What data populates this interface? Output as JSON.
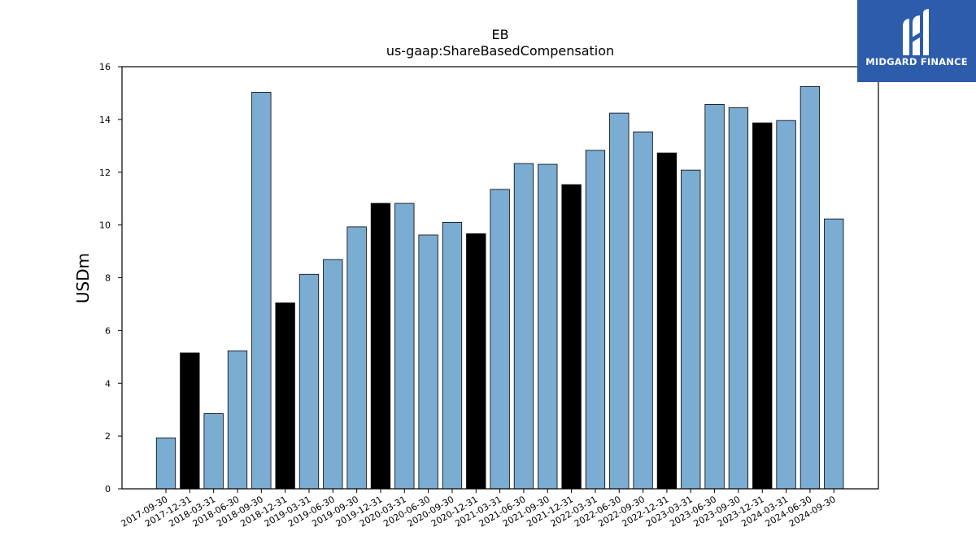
{
  "chart_data": {
    "type": "bar",
    "title": "EB",
    "subtitle": "us-gaap:ShareBasedCompensation",
    "xlabel": "",
    "ylabel": "USDm",
    "ylim": [
      0,
      16
    ],
    "yticks": [
      0,
      2,
      4,
      6,
      8,
      10,
      12,
      14,
      16
    ],
    "grid": false,
    "colors": {
      "quarter": "#7bacd2",
      "year_end": "#000000",
      "edge": "#000000"
    },
    "categories": [
      "2017-09-30",
      "2017-12-31",
      "2018-03-31",
      "2018-06-30",
      "2018-09-30",
      "2018-12-31",
      "2019-03-31",
      "2019-06-30",
      "2019-09-30",
      "2019-12-31",
      "2020-03-31",
      "2020-06-30",
      "2020-09-30",
      "2020-12-31",
      "2021-03-31",
      "2021-06-30",
      "2021-09-30",
      "2021-12-31",
      "2022-03-31",
      "2022-06-30",
      "2022-09-30",
      "2022-12-31",
      "2023-03-31",
      "2023-06-30",
      "2023-09-30",
      "2023-12-31",
      "2024-03-31",
      "2024-06-30",
      "2024-09-30"
    ],
    "values": [
      1.93,
      5.15,
      2.85,
      5.23,
      15.03,
      7.05,
      8.13,
      8.69,
      9.93,
      10.82,
      10.82,
      9.62,
      10.1,
      9.67,
      11.35,
      12.33,
      12.3,
      11.53,
      12.83,
      14.24,
      13.53,
      12.73,
      12.08,
      14.57,
      14.45,
      13.87,
      13.96,
      15.25,
      10.23
    ],
    "highlight": [
      false,
      true,
      false,
      false,
      false,
      true,
      false,
      false,
      false,
      true,
      false,
      false,
      false,
      true,
      false,
      false,
      false,
      true,
      false,
      false,
      false,
      true,
      false,
      false,
      false,
      true,
      false,
      false,
      false
    ]
  },
  "logo": {
    "text": "MIDGARD FINANCE",
    "icon": "midgard-logo-icon"
  }
}
